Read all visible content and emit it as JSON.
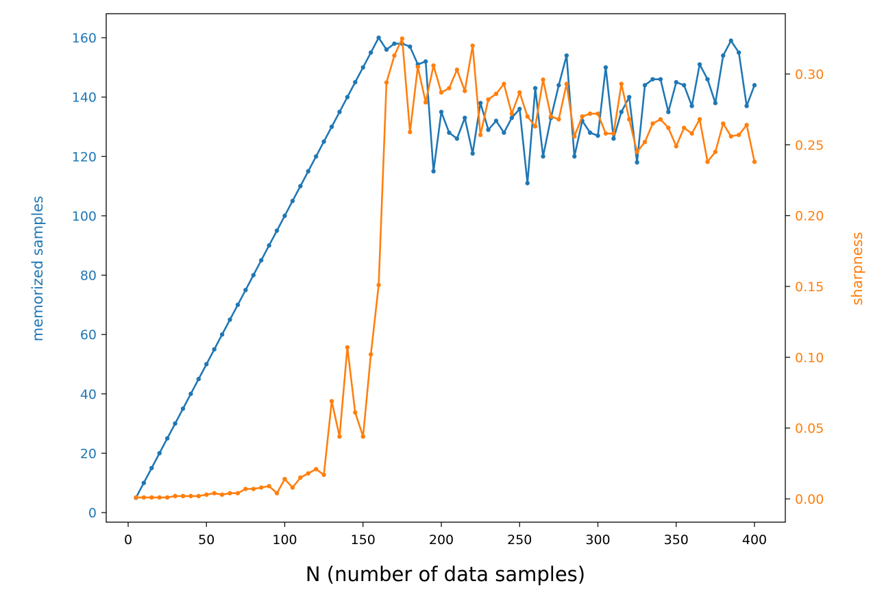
{
  "chart_data": {
    "type": "line",
    "title": "",
    "xlabel": "N (number of data samples)",
    "ylabel_left": "memorized samples",
    "ylabel_right": "sharpness",
    "xlim": [
      -10,
      420
    ],
    "ylim_left": [
      -3,
      168
    ],
    "ylim_right": [
      -0.016,
      0.342
    ],
    "x_ticks": [
      "0",
      "50",
      "100",
      "150",
      "200",
      "250",
      "300",
      "350",
      "400"
    ],
    "y_ticks_left": [
      "0",
      "20",
      "40",
      "60",
      "80",
      "100",
      "120",
      "140",
      "160"
    ],
    "y_ticks_right": [
      "0.00",
      "0.05",
      "0.10",
      "0.15",
      "0.20",
      "0.25",
      "0.30"
    ],
    "grid": false,
    "x": [
      5,
      10,
      15,
      20,
      25,
      30,
      35,
      40,
      45,
      50,
      55,
      60,
      65,
      70,
      75,
      80,
      85,
      90,
      95,
      100,
      105,
      110,
      115,
      120,
      125,
      130,
      135,
      140,
      145,
      150,
      155,
      160,
      165,
      170,
      175,
      180,
      185,
      190,
      195,
      200,
      205,
      210,
      215,
      220,
      225,
      230,
      235,
      240,
      245,
      250,
      255,
      260,
      265,
      270,
      275,
      280,
      285,
      290,
      295,
      300,
      305,
      310,
      315,
      320,
      325,
      330,
      335,
      340,
      345,
      350,
      355,
      360,
      365,
      370,
      375,
      380,
      385,
      390,
      395,
      400
    ],
    "series": [
      {
        "name": "memorized samples",
        "axis": "left",
        "color": "#1f77b4",
        "values": [
          5,
          10,
          15,
          20,
          25,
          30,
          35,
          40,
          45,
          50,
          55,
          60,
          65,
          70,
          75,
          80,
          85,
          90,
          95,
          100,
          105,
          110,
          115,
          120,
          125,
          130,
          135,
          140,
          145,
          150,
          155,
          160,
          156,
          158,
          158,
          157,
          151,
          152,
          115,
          135,
          128,
          126,
          133,
          121,
          138,
          129,
          132,
          128,
          133,
          136,
          111,
          143,
          120,
          133,
          144,
          154,
          120,
          132,
          128,
          127,
          150,
          126,
          135,
          140,
          118,
          144,
          146,
          146,
          135,
          145,
          144,
          137,
          151,
          146,
          138,
          154,
          159,
          155,
          137,
          144
        ]
      },
      {
        "name": "sharpness",
        "axis": "right",
        "color": "#ff7f0e",
        "values": [
          0.001,
          0.001,
          0.001,
          0.001,
          0.001,
          0.002,
          0.002,
          0.002,
          0.002,
          0.003,
          0.004,
          0.003,
          0.004,
          0.004,
          0.007,
          0.007,
          0.008,
          0.009,
          0.004,
          0.014,
          0.008,
          0.015,
          0.018,
          0.021,
          0.017,
          0.069,
          0.044,
          0.107,
          0.061,
          0.044,
          0.102,
          0.151,
          0.294,
          0.313,
          0.325,
          0.259,
          0.305,
          0.28,
          0.306,
          0.287,
          0.29,
          0.303,
          0.288,
          0.32,
          0.257,
          0.282,
          0.286,
          0.293,
          0.272,
          0.287,
          0.27,
          0.263,
          0.296,
          0.27,
          0.268,
          0.293,
          0.256,
          0.27,
          0.272,
          0.272,
          0.258,
          0.258,
          0.293,
          0.268,
          0.245,
          0.252,
          0.265,
          0.268,
          0.262,
          0.249,
          0.262,
          0.258,
          0.268,
          0.238,
          0.245,
          0.265,
          0.256,
          0.257,
          0.264,
          0.238
        ]
      }
    ]
  }
}
